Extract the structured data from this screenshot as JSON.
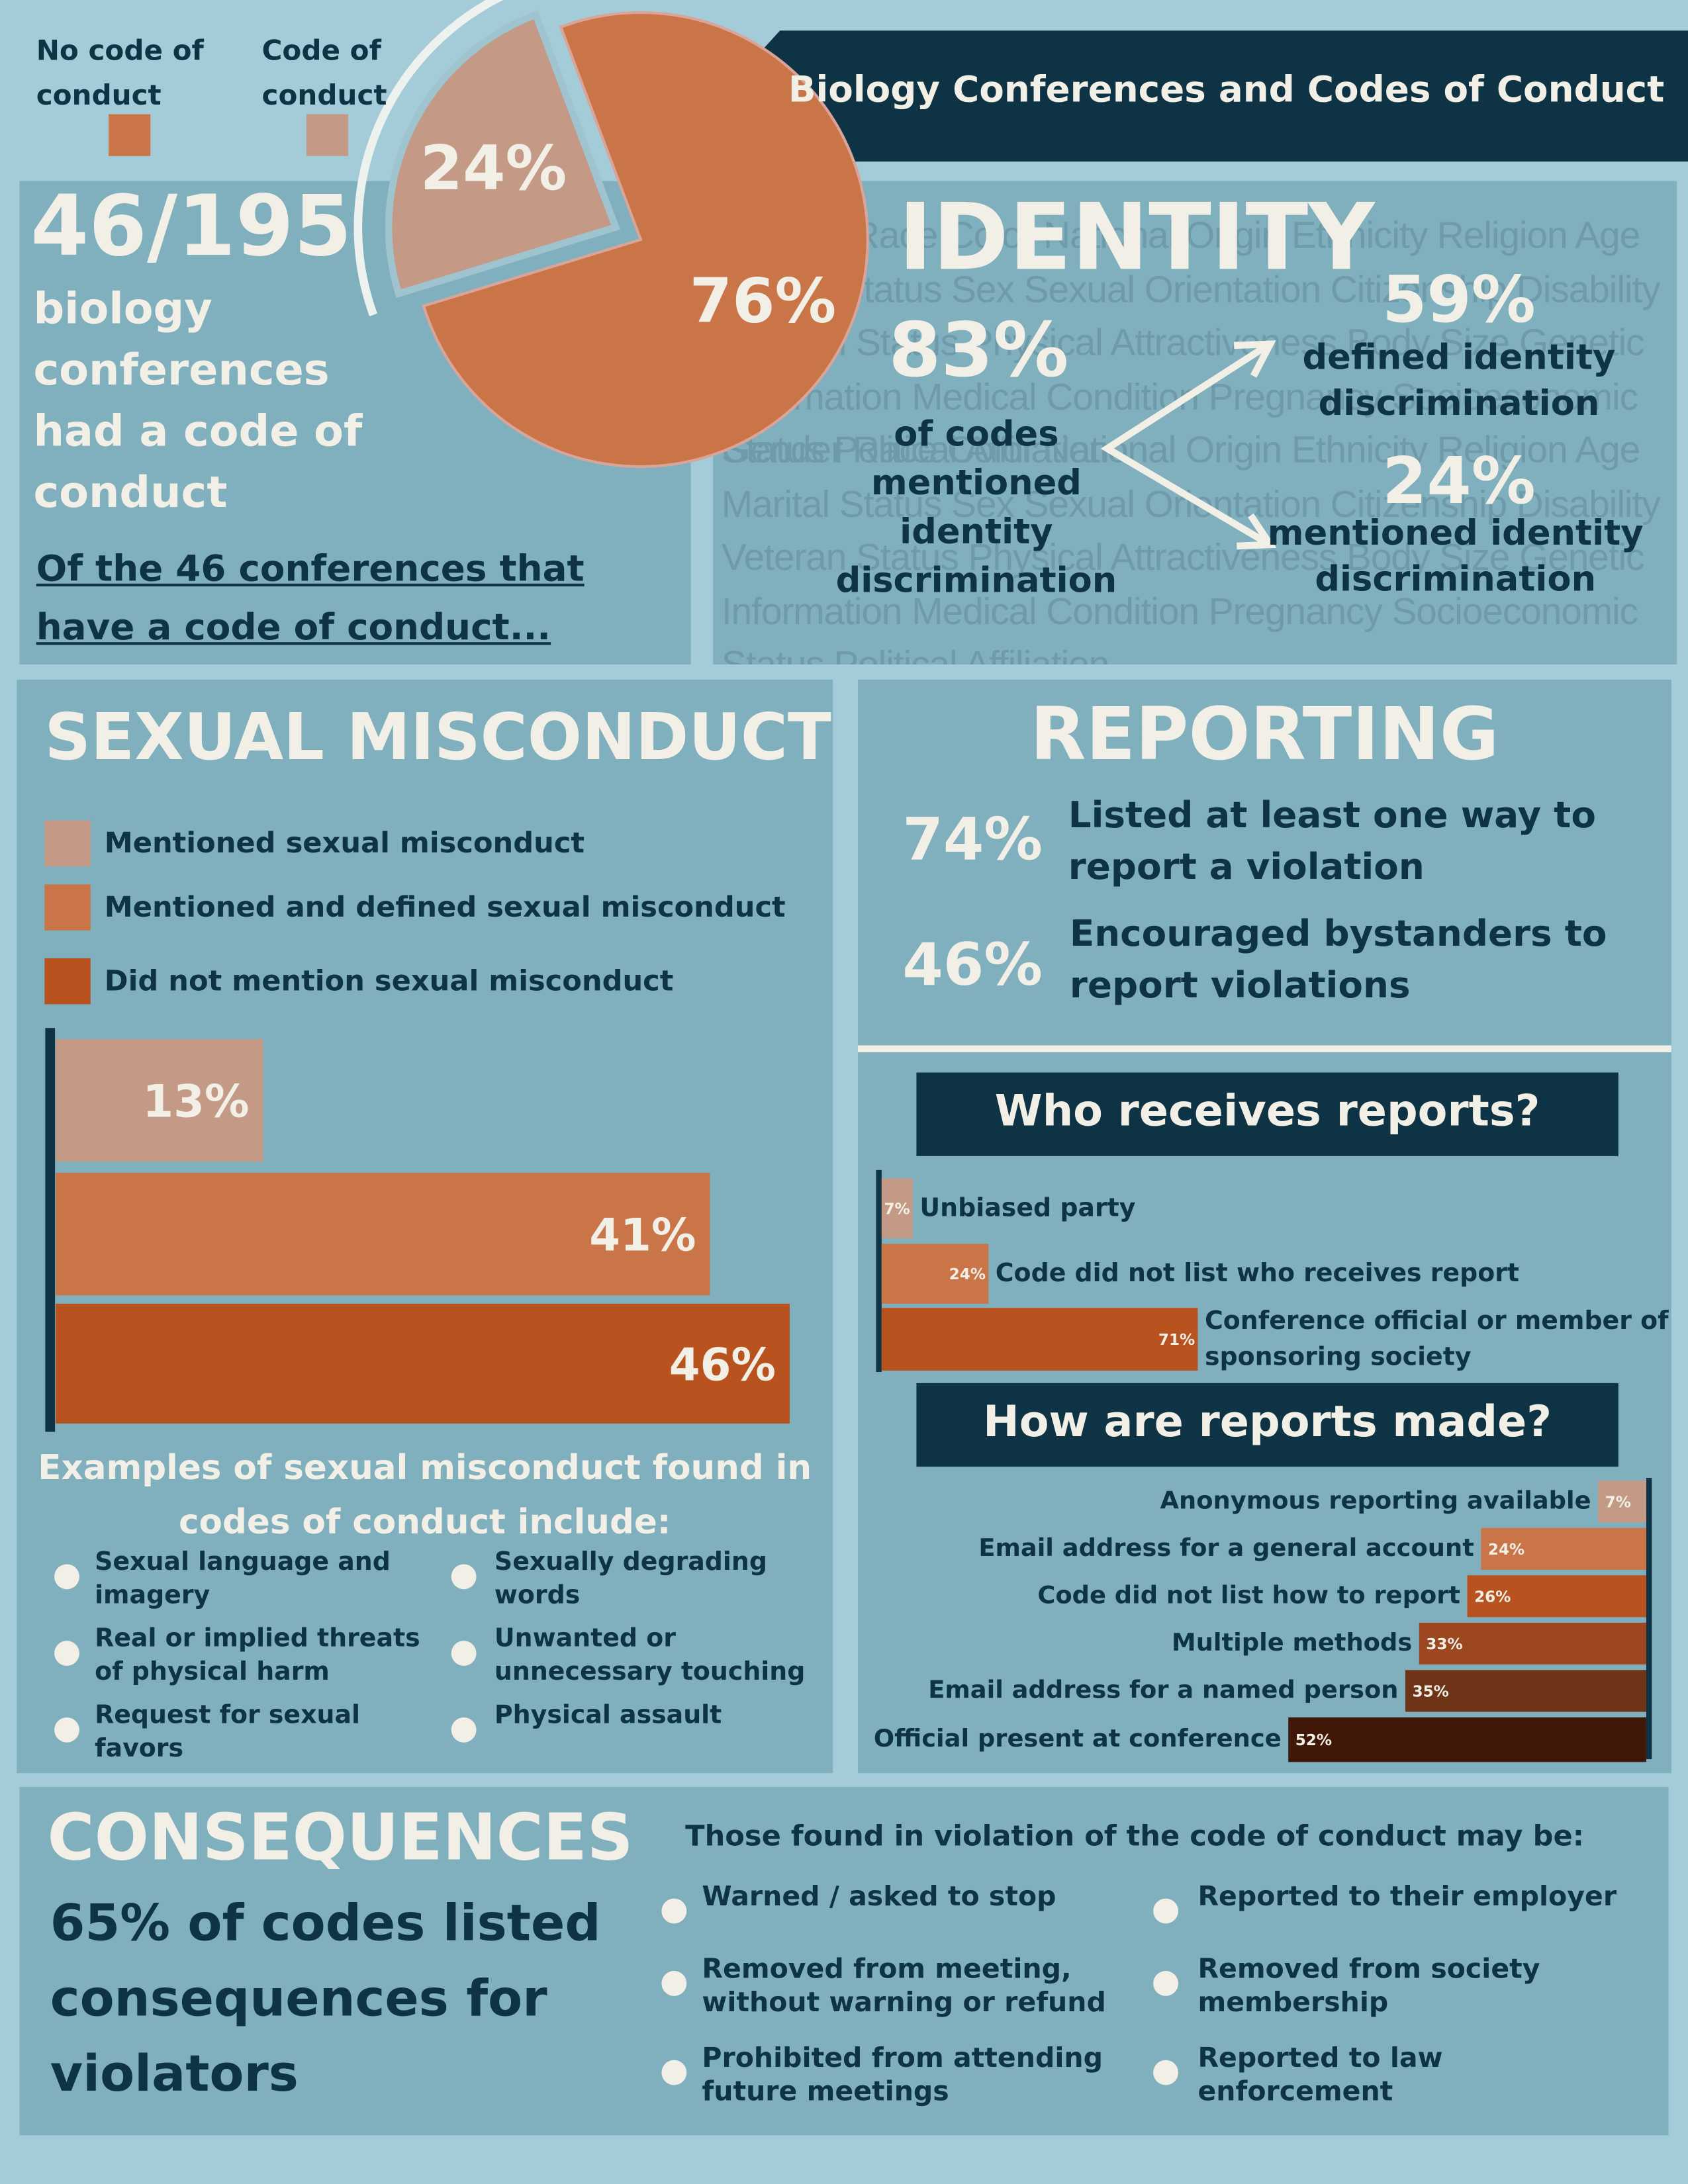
{
  "title": "Biology Conferences and Codes of Conduct",
  "chart_data": [
    {
      "type": "pie",
      "categories": [
        "No code of conduct",
        "Code of conduct"
      ],
      "values": [
        76,
        24
      ],
      "value_labels": [
        "76%",
        "24%"
      ],
      "colors": [
        "#c97548",
        "#c49a86"
      ]
    },
    {
      "type": "bar",
      "title": "SEXUAL MISCONDUCT",
      "categories": [
        "Mentioned sexual misconduct",
        "Mentioned and defined sexual misconduct",
        "Did not mention sexual misconduct"
      ],
      "values": [
        13,
        41,
        46
      ],
      "value_labels": [
        "13%",
        "41%",
        "46%"
      ],
      "colors": [
        "#c49a86",
        "#c97548",
        "#b8531f"
      ]
    },
    {
      "type": "bar",
      "title": "Who receives reports?",
      "categories": [
        "Unbiased party",
        "Code did not list who receives report",
        "Conference official or member of sponsoring society"
      ],
      "values": [
        7,
        24,
        71
      ],
      "value_labels": [
        "7%",
        "24%",
        "71%"
      ],
      "colors": [
        "#c49a86",
        "#c97548",
        "#b8531f"
      ]
    },
    {
      "type": "bar",
      "title": "How are reports made?",
      "categories": [
        "Anonymous reporting available",
        "Email address for a general account",
        "Code did not list how to report",
        "Multiple methods",
        "Email address for a named person",
        "Official present at conference"
      ],
      "values": [
        7,
        24,
        26,
        33,
        35,
        52
      ],
      "value_labels": [
        "7%",
        "24%",
        "26%",
        "33%",
        "35%",
        "52%"
      ],
      "colors": [
        "#c49a86",
        "#c97548",
        "#b8531f",
        "#9c4720",
        "#6e3418",
        "#401808"
      ]
    }
  ],
  "intro": {
    "fraction": "46/195",
    "text": "biology conferences had a code of conduct",
    "lead": "Of the 46 conferences that have a code of conduct..."
  },
  "identity": {
    "heading": "IDENTITY",
    "background_terms": "Gender Race Color National Origin Ethnicity Religion Age Marital Status Sex Sexual Orientation Citizenship Disability Veteran Status Physical Attractiveness Body Size Genetic Information Medical Condition Pregnancy Socioeconomic Status Political Affiliation",
    "total": {
      "value": "83%",
      "text": "of codes mentioned identity discrimination"
    },
    "branches": [
      {
        "value": "59%",
        "text": "defined identity discrimination"
      },
      {
        "value": "24%",
        "text": "mentioned identity discrimination"
      }
    ]
  },
  "examples": {
    "heading": "Examples of sexual misconduct found in codes of conduct include:",
    "items": [
      "Sexual language and imagery",
      "Sexually degrading words",
      "Real or implied threats of physical harm",
      "Unwanted or unnecessary touching",
      "Request for sexual favors",
      "Physical assault"
    ]
  },
  "reporting": {
    "heading": "REPORTING",
    "items": [
      {
        "value": "74%",
        "text": "Listed at least one way to report a violation"
      },
      {
        "value": "46%",
        "text": "Encouraged bystanders to report violations"
      }
    ]
  },
  "consequences": {
    "heading": "CONSEQUENCES",
    "summary": "65% of codes listed consequences for violators",
    "intro": "Those found in violation of the code of conduct may be:",
    "items": [
      "Warned / asked to stop",
      "Reported to their employer",
      "Removed from meeting, without warning or refund",
      "Removed from society membership",
      "Prohibited from attending future meetings",
      "Reported to law enforcement"
    ]
  }
}
